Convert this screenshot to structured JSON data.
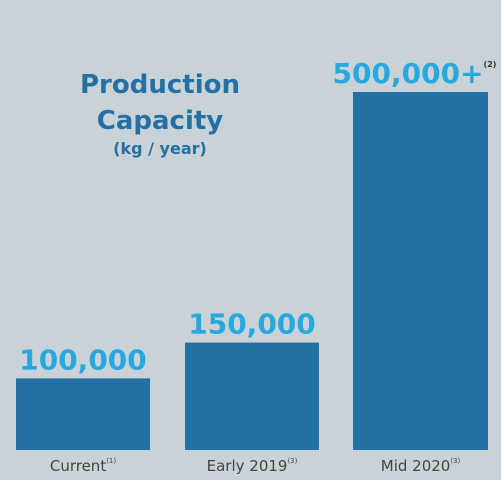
{
  "chart_data": {
    "type": "bar",
    "title": [
      "Production",
      "Capacity"
    ],
    "subtitle": "(kg / year)",
    "categories": [
      {
        "label": "Current",
        "note": "(1)"
      },
      {
        "label": "Early 2019",
        "note": "(3)"
      },
      {
        "label": "Mid 2020",
        "note": "(3)"
      }
    ],
    "values": [
      100000,
      150000,
      500000
    ],
    "data_labels": [
      {
        "text": "100,000",
        "note": ""
      },
      {
        "text": "150,000",
        "note": ""
      },
      {
        "text": "500,000+",
        "note": "(2)"
      }
    ],
    "ylim": [
      0,
      500000
    ],
    "grid": false,
    "colors": {
      "background": "#c9d2d6",
      "bar": "#2370a4",
      "title": "#2370a4",
      "data_label": "#29a8e0",
      "category_label": "#444444"
    }
  }
}
